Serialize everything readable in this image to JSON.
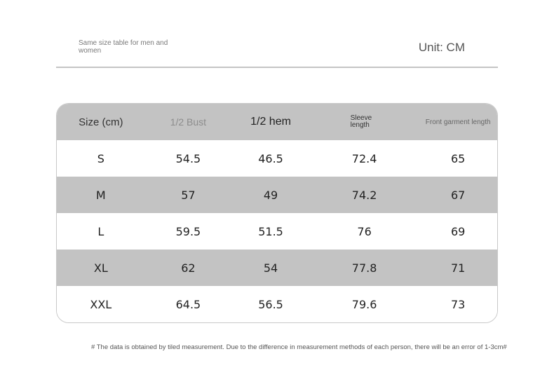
{
  "header": {
    "subtitle": "Same size table for men and women",
    "unit": "Unit: CM"
  },
  "table": {
    "columns": [
      "Size (cm)",
      "1/2 Bust",
      "1/2 hem",
      "Sleeve length",
      "Front garment length"
    ],
    "rows": [
      [
        "S",
        "54.5",
        "46.5",
        "72.4",
        "65"
      ],
      [
        "M",
        "57",
        "49",
        "74.2",
        "67"
      ],
      [
        "L",
        "59.5",
        "51.5",
        "76",
        "69"
      ],
      [
        "XL",
        "62",
        "54",
        "77.8",
        "71"
      ],
      [
        "XXL",
        "64.5",
        "56.5",
        "79.6",
        "73"
      ]
    ]
  },
  "footnote": "# The data is obtained by tiled measurement. Due to the difference in measurement methods of each person, there will be an error of 1-3cm#"
}
